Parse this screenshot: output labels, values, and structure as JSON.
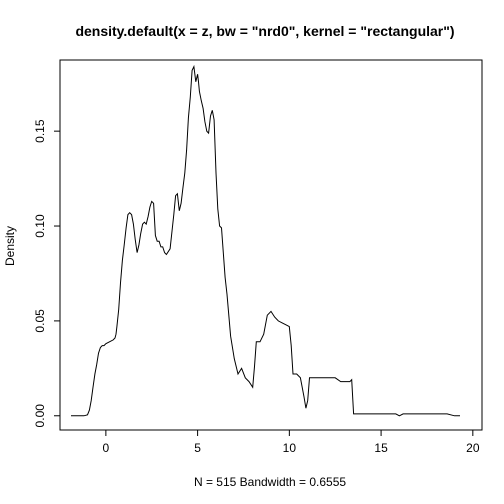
{
  "chart_data": {
    "type": "line",
    "title": "density.default(x = z, bw = \"nrd0\", kernel = \"rectangular\")",
    "xlabel": "N = 515   Bandwidth = 0.6555",
    "ylabel": "Density",
    "xlim": [
      -2.5,
      20.5
    ],
    "ylim": [
      -0.0075,
      0.1875
    ],
    "x_ticks": [
      0,
      5,
      10,
      15,
      20
    ],
    "x_tick_labels": [
      "0",
      "5",
      "10",
      "15",
      "20"
    ],
    "y_ticks": [
      0.0,
      0.05,
      0.1,
      0.15
    ],
    "y_tick_labels": [
      "0.00",
      "0.05",
      "0.10",
      "0.15"
    ],
    "grid": false,
    "line_color": "#000000",
    "series": [
      {
        "x": [
          -1.9,
          -1.5,
          -1.2,
          -1.0,
          -0.9,
          -0.8,
          -0.7,
          -0.6,
          -0.5,
          -0.4,
          -0.3,
          -0.2,
          -0.1,
          0.0,
          0.2,
          0.4,
          0.5,
          0.55,
          0.6,
          0.7,
          0.8,
          0.9,
          1.0,
          1.1,
          1.2,
          1.3,
          1.4,
          1.5,
          1.6,
          1.7,
          1.8,
          1.9,
          2.0,
          2.1,
          2.2,
          2.3,
          2.4,
          2.5,
          2.6,
          2.7,
          2.8,
          2.9,
          3.0,
          3.1,
          3.2,
          3.3,
          3.5,
          3.7,
          3.8,
          3.9,
          4.0,
          4.1,
          4.2,
          4.3,
          4.4,
          4.5,
          4.6,
          4.7,
          4.8,
          4.9,
          5.0,
          5.05,
          5.1,
          5.2,
          5.3,
          5.4,
          5.5,
          5.6,
          5.7,
          5.8,
          5.9,
          6.0,
          6.1,
          6.2,
          6.3,
          6.4,
          6.5,
          6.6,
          6.8,
          7.0,
          7.2,
          7.4,
          7.6,
          7.8,
          8.0,
          8.1,
          8.2,
          8.4,
          8.6,
          8.8,
          9.0,
          9.2,
          9.4,
          9.6,
          9.8,
          10.0,
          10.1,
          10.2,
          10.4,
          10.6,
          10.8,
          10.9,
          11.0,
          11.1,
          11.2,
          11.3,
          11.5,
          12.0,
          12.5,
          12.8,
          12.9,
          13.0,
          13.3,
          13.4,
          13.5,
          13.6,
          14.0,
          15.0,
          15.8,
          16.0,
          16.2,
          16.4,
          17.0,
          18.0,
          18.5,
          18.6,
          19.0,
          19.3
        ],
        "y": [
          0.0,
          0.0,
          0.0,
          0.0005,
          0.003,
          0.008,
          0.015,
          0.022,
          0.027,
          0.033,
          0.036,
          0.037,
          0.037,
          0.038,
          0.039,
          0.04,
          0.041,
          0.043,
          0.047,
          0.056,
          0.07,
          0.082,
          0.09,
          0.099,
          0.106,
          0.107,
          0.106,
          0.101,
          0.093,
          0.086,
          0.09,
          0.096,
          0.101,
          0.102,
          0.101,
          0.105,
          0.11,
          0.113,
          0.112,
          0.095,
          0.092,
          0.092,
          0.089,
          0.089,
          0.086,
          0.085,
          0.088,
          0.106,
          0.116,
          0.117,
          0.108,
          0.112,
          0.12,
          0.128,
          0.14,
          0.157,
          0.168,
          0.182,
          0.184,
          0.176,
          0.18,
          0.176,
          0.171,
          0.166,
          0.162,
          0.155,
          0.15,
          0.149,
          0.158,
          0.161,
          0.156,
          0.128,
          0.109,
          0.1,
          0.099,
          0.086,
          0.073,
          0.064,
          0.042,
          0.03,
          0.022,
          0.025,
          0.02,
          0.018,
          0.015,
          0.026,
          0.039,
          0.039,
          0.043,
          0.053,
          0.055,
          0.052,
          0.05,
          0.049,
          0.048,
          0.047,
          0.037,
          0.022,
          0.022,
          0.02,
          0.01,
          0.004,
          0.008,
          0.02,
          0.02,
          0.02,
          0.02,
          0.02,
          0.02,
          0.018,
          0.018,
          0.018,
          0.018,
          0.019,
          0.001,
          0.001,
          0.001,
          0.001,
          0.001,
          0.0,
          0.001,
          0.001,
          0.001,
          0.001,
          0.001,
          0.001,
          0.0,
          0.0
        ]
      }
    ]
  }
}
